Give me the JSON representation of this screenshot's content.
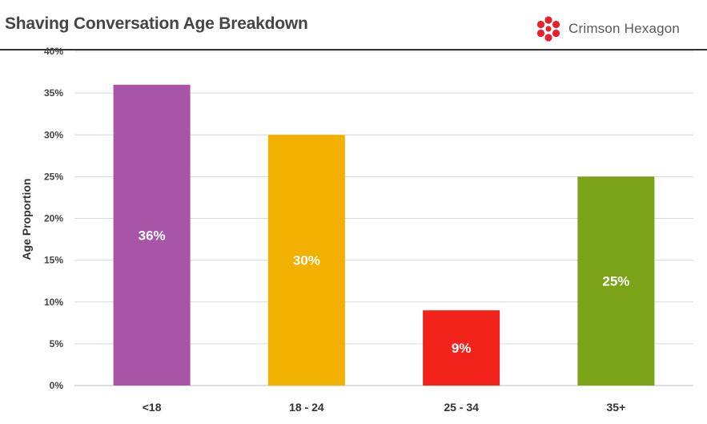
{
  "header": {
    "title": "Shaving Conversation Age Breakdown",
    "brand_name": "Crimson Hexagon",
    "brand_color": "#E8202A"
  },
  "chart_data": {
    "type": "bar",
    "title": "Shaving Conversation Age Breakdown",
    "xlabel": "",
    "ylabel": "Age Proportion",
    "categories": [
      "<18",
      "18 - 24",
      "25 - 34",
      "35+"
    ],
    "values": [
      36,
      30,
      9,
      25
    ],
    "data_labels": [
      "36%",
      "30%",
      "9%",
      "25%"
    ],
    "colors": [
      "#A855A8",
      "#F2B000",
      "#F2231A",
      "#7BA317"
    ],
    "ylim": [
      0,
      40
    ],
    "yticks": [
      "0%",
      "5%",
      "10%",
      "15%",
      "20%",
      "25%",
      "30%",
      "35%",
      "40%"
    ],
    "grid": true,
    "legend": "none"
  }
}
